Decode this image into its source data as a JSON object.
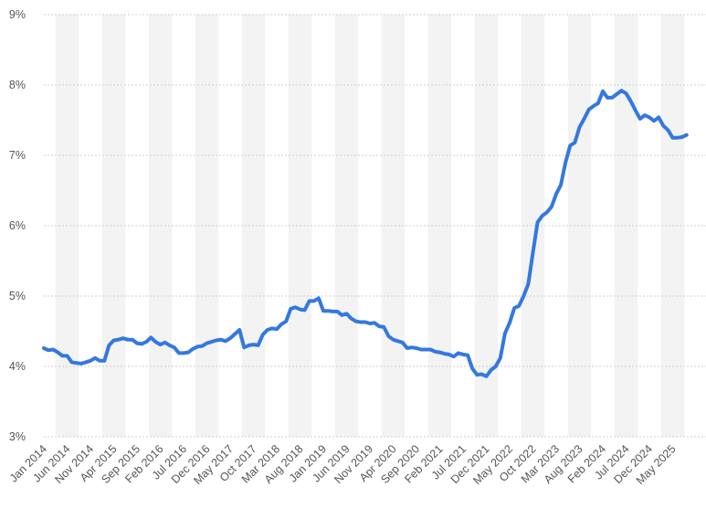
{
  "chart_data": {
    "type": "line",
    "categories": [
      "Jan 2014",
      null,
      null,
      null,
      null,
      "Jun 2014",
      null,
      null,
      null,
      null,
      "Nov 2014",
      null,
      null,
      null,
      null,
      "Apr 2015",
      null,
      null,
      null,
      null,
      "Sep 2015",
      null,
      null,
      null,
      null,
      "Feb 2016",
      null,
      null,
      null,
      null,
      "Jul 2016",
      null,
      null,
      null,
      null,
      "Dec 2016",
      null,
      null,
      null,
      null,
      "May 2017",
      null,
      null,
      null,
      null,
      "Oct 2017",
      null,
      null,
      null,
      null,
      "Mar 2018",
      null,
      null,
      null,
      null,
      "Aug 2018",
      null,
      null,
      null,
      null,
      "Jan 2019",
      null,
      null,
      null,
      null,
      "Jun 2019",
      null,
      null,
      null,
      null,
      "Nov 2019",
      null,
      null,
      null,
      null,
      "Apr 2020",
      null,
      null,
      null,
      null,
      "Sep 2020",
      null,
      null,
      null,
      null,
      "Feb 2021",
      null,
      null,
      null,
      null,
      "Jul 2021",
      null,
      null,
      null,
      null,
      "Dec 2021",
      null,
      null,
      null,
      null,
      "May 2022",
      null,
      null,
      null,
      null,
      "Oct 2022",
      null,
      null,
      null,
      null,
      "Mar 2023",
      null,
      null,
      null,
      null,
      "Aug 2023",
      null,
      null,
      null,
      null,
      "Feb 2024",
      null,
      null,
      null,
      null,
      "Jul 2024",
      null,
      null,
      null,
      null,
      "Dec 2024",
      null,
      null,
      null,
      null,
      "May 2025",
      null,
      null,
      null
    ],
    "values": [
      4.26,
      4.23,
      4.24,
      4.2,
      4.15,
      4.15,
      4.06,
      4.05,
      4.04,
      4.06,
      4.08,
      4.12,
      4.08,
      4.08,
      4.3,
      4.37,
      4.38,
      4.4,
      4.38,
      4.38,
      4.33,
      4.32,
      4.35,
      4.41,
      4.35,
      4.31,
      4.34,
      4.3,
      4.27,
      4.19,
      4.19,
      4.2,
      4.25,
      4.28,
      4.29,
      4.33,
      4.35,
      4.37,
      4.38,
      4.36,
      4.4,
      4.46,
      4.52,
      4.27,
      4.3,
      4.31,
      4.3,
      4.45,
      4.52,
      4.54,
      4.53,
      4.6,
      4.64,
      4.82,
      4.84,
      4.81,
      4.8,
      4.93,
      4.93,
      4.97,
      4.79,
      4.79,
      4.78,
      4.78,
      4.73,
      4.75,
      4.68,
      4.64,
      4.63,
      4.63,
      4.61,
      4.62,
      4.57,
      4.56,
      4.43,
      4.38,
      4.36,
      4.34,
      4.26,
      4.27,
      4.26,
      4.24,
      4.24,
      4.24,
      4.21,
      4.2,
      4.18,
      4.17,
      4.14,
      4.19,
      4.17,
      4.16,
      3.97,
      3.88,
      3.89,
      3.86,
      3.95,
      4.0,
      4.12,
      4.47,
      4.62,
      4.83,
      4.86,
      5.0,
      5.17,
      5.62,
      6.05,
      6.14,
      6.19,
      6.27,
      6.45,
      6.58,
      6.9,
      7.14,
      7.18,
      7.4,
      7.52,
      7.65,
      7.7,
      7.74,
      7.91,
      7.82,
      7.82,
      7.87,
      7.92,
      7.88,
      7.77,
      7.64,
      7.52,
      7.57,
      7.54,
      7.49,
      7.54,
      7.42,
      7.36,
      7.25,
      7.25,
      7.26,
      7.29
    ],
    "color": "#3478e0",
    "ylim": [
      3,
      9
    ],
    "yticks": [
      {
        "value": 3,
        "label": "3%"
      },
      {
        "value": 4,
        "label": "4%"
      },
      {
        "value": 5,
        "label": "5%"
      },
      {
        "value": 6,
        "label": "6%"
      },
      {
        "value": 7,
        "label": "7%"
      },
      {
        "value": 8,
        "label": "8%"
      },
      {
        "value": 9,
        "label": "9%"
      }
    ],
    "grid": true
  }
}
